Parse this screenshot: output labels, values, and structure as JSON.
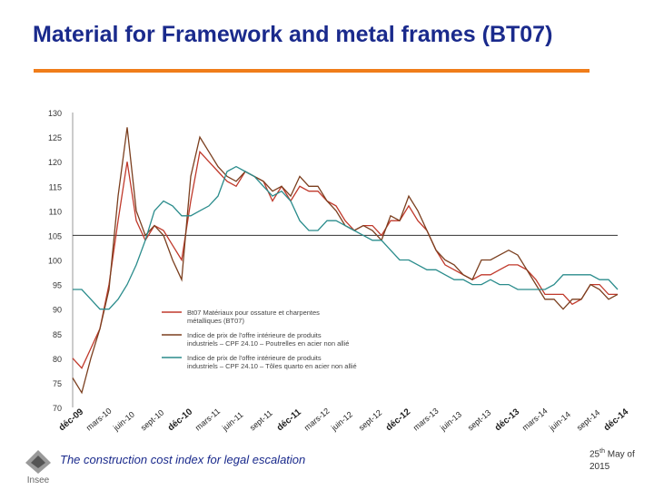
{
  "header": {
    "title": "Material for Framework and metal frames (BT07)"
  },
  "footer": {
    "caption": "The construction cost index for legal escalation",
    "date_day": "25",
    "date_suffix": "th",
    "date_rest": " May  of",
    "date_year": "2015",
    "logo_text": "Insee"
  },
  "colors": {
    "accent": "#f07d1a",
    "title": "#1a2a8c",
    "series_bt07": "#c0392b",
    "series_girders": "#7b3f1f",
    "series_plates": "#2a8c8c"
  },
  "chart_data": {
    "type": "line",
    "ylim": [
      70,
      130
    ],
    "yticks": [
      70,
      75,
      80,
      85,
      90,
      95,
      100,
      105,
      110,
      115,
      120,
      125,
      130
    ],
    "reference_line": 105,
    "x_tick_labels": [
      "déc-09",
      "mars-10",
      "juin-10",
      "sept-10",
      "déc-10",
      "mars-11",
      "juin-11",
      "sept-11",
      "déc-11",
      "mars-12",
      "juin-12",
      "sept-12",
      "déc-12",
      "mars-13",
      "juin-13",
      "sept-13",
      "déc-13",
      "mars-14",
      "juin-14",
      "sept-14",
      "déc-14"
    ],
    "x_tick_bold": [
      true,
      false,
      false,
      false,
      true,
      false,
      false,
      false,
      true,
      false,
      false,
      false,
      true,
      false,
      false,
      false,
      true,
      false,
      false,
      false,
      true
    ],
    "series": [
      {
        "name": "BT07 Matériaux pour ossature et charpentes métalliques",
        "values": [
          80,
          78,
          82,
          86,
          95,
          108,
          120,
          108,
          104,
          107,
          106,
          103,
          100,
          112,
          122,
          120,
          118,
          116,
          115,
          118,
          117,
          116,
          112,
          115,
          112,
          115,
          114,
          114,
          112,
          111,
          108,
          106,
          107,
          107,
          105,
          108,
          108,
          111,
          108,
          106,
          102,
          99,
          98,
          97,
          96,
          97,
          97,
          98,
          99,
          99,
          98,
          96,
          93,
          93,
          93,
          91,
          92,
          95,
          95,
          93,
          93
        ]
      },
      {
        "name": "Indice de prix de l'offre intérieure de produits industriels – CPF 24.10 – Poutrelles en acier non allié",
        "values": [
          76,
          73,
          80,
          86,
          94,
          113,
          127,
          110,
          105,
          107,
          105,
          100,
          96,
          117,
          125,
          122,
          119,
          117,
          116,
          118,
          117,
          116,
          114,
          115,
          113,
          117,
          115,
          115,
          112,
          110,
          107,
          106,
          107,
          106,
          104,
          109,
          108,
          113,
          110,
          106,
          102,
          100,
          99,
          97,
          96,
          100,
          100,
          101,
          102,
          101,
          98,
          95,
          92,
          92,
          90,
          92,
          92,
          95,
          94,
          92,
          93
        ]
      },
      {
        "name": "Indice de prix de l'offre intérieure de produits industriels – CPF 24.10 – Tôles quarto en acier non allié",
        "values": [
          94,
          94,
          92,
          90,
          90,
          92,
          95,
          99,
          104,
          110,
          112,
          111,
          109,
          109,
          110,
          111,
          113,
          118,
          119,
          118,
          117,
          115,
          113,
          114,
          112,
          108,
          106,
          106,
          108,
          108,
          107,
          106,
          105,
          104,
          104,
          102,
          100,
          100,
          99,
          98,
          98,
          97,
          96,
          96,
          95,
          95,
          96,
          95,
          95,
          94,
          94,
          94,
          94,
          95,
          97,
          97,
          97,
          97,
          96,
          96,
          94
        ]
      }
    ],
    "legend": [
      {
        "label_line1": "Bt07 Matériaux pour ossature et charpentes",
        "label_line2": "métalliques (BT07)"
      },
      {
        "label_line1": "Indice de prix de l'offre intérieure de produits",
        "label_line2": "industriels – CPF 24.10 – Poutrelles en acier non allié"
      },
      {
        "label_line1": "Indice de prix de l'offre intérieure de produits",
        "label_line2": "industriels – CPF 24.10 – Tôles quarto en acier non allié"
      }
    ],
    "legend_placement": "center"
  }
}
